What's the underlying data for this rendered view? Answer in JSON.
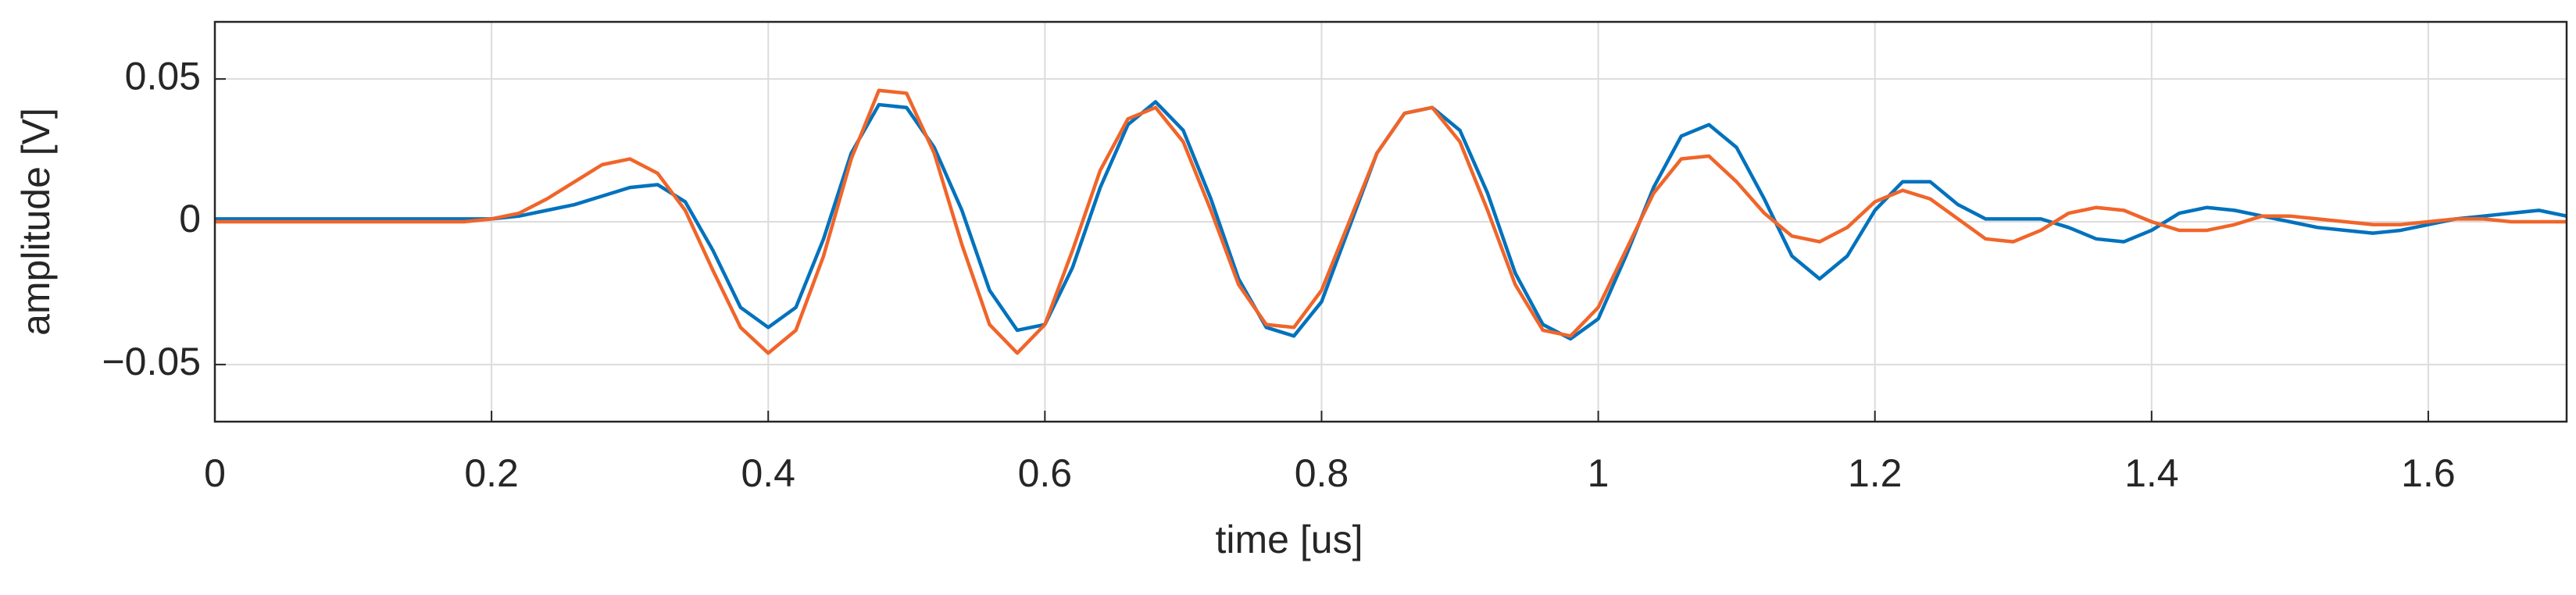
{
  "chart_data": {
    "type": "line",
    "xlabel": "time [us]",
    "ylabel": "amplitude [V]",
    "x": [
      0,
      0.02,
      0.04,
      0.06,
      0.08,
      0.1,
      0.12,
      0.14,
      0.16,
      0.18,
      0.2,
      0.22,
      0.24,
      0.26,
      0.28,
      0.3,
      0.32,
      0.34,
      0.36,
      0.38,
      0.4,
      0.42,
      0.44,
      0.46,
      0.48,
      0.5,
      0.52,
      0.54,
      0.56,
      0.58,
      0.6,
      0.62,
      0.64,
      0.66,
      0.68,
      0.7,
      0.72,
      0.74,
      0.76,
      0.78,
      0.8,
      0.82,
      0.84,
      0.86,
      0.88,
      0.9,
      0.92,
      0.94,
      0.96,
      0.98,
      1,
      1.02,
      1.04,
      1.06,
      1.08,
      1.1,
      1.12,
      1.14,
      1.16,
      1.18,
      1.2,
      1.22,
      1.24,
      1.26,
      1.28,
      1.3,
      1.32,
      1.34,
      1.36,
      1.38,
      1.4,
      1.42,
      1.44,
      1.46,
      1.48,
      1.5,
      1.52,
      1.54,
      1.56,
      1.58,
      1.6,
      1.62,
      1.64,
      1.66,
      1.68,
      1.7
    ],
    "series": [
      {
        "color": "#0072bd",
        "values": [
          0.001,
          0.001,
          0.001,
          0.001,
          0.001,
          0.001,
          0.001,
          0.001,
          0.001,
          0.001,
          0.001,
          0.002,
          0.004,
          0.006,
          0.009,
          0.012,
          0.013,
          0.007,
          -0.01,
          -0.03,
          -0.037,
          -0.03,
          -0.006,
          0.024,
          0.041,
          0.04,
          0.026,
          0.004,
          -0.024,
          -0.038,
          -0.036,
          -0.016,
          0.012,
          0.034,
          0.042,
          0.032,
          0.008,
          -0.02,
          -0.037,
          -0.04,
          -0.028,
          -0.002,
          0.024,
          0.038,
          0.04,
          0.032,
          0.01,
          -0.018,
          -0.036,
          -0.041,
          -0.034,
          -0.012,
          0.012,
          0.03,
          0.034,
          0.026,
          0.008,
          -0.012,
          -0.02,
          -0.012,
          0.004,
          0.014,
          0.014,
          0.006,
          0.001,
          0.001,
          0.001,
          -0.002,
          -0.006,
          -0.007,
          -0.003,
          0.003,
          0.005,
          0.004,
          0.002,
          0,
          -0.002,
          -0.003,
          -0.004,
          -0.003,
          -0.001,
          0.001,
          0.002,
          0.003,
          0.004,
          0.002
        ]
      },
      {
        "color": "#f0652a",
        "values": [
          0,
          0,
          0,
          0,
          0,
          0,
          0,
          0,
          0,
          0,
          0.001,
          0.003,
          0.008,
          0.014,
          0.02,
          0.022,
          0.017,
          0.004,
          -0.017,
          -0.037,
          -0.046,
          -0.038,
          -0.012,
          0.022,
          0.046,
          0.045,
          0.024,
          -0.008,
          -0.036,
          -0.046,
          -0.036,
          -0.01,
          0.018,
          0.036,
          0.04,
          0.028,
          0.004,
          -0.022,
          -0.036,
          -0.037,
          -0.024,
          0,
          0.024,
          0.038,
          0.04,
          0.028,
          0.004,
          -0.022,
          -0.038,
          -0.04,
          -0.03,
          -0.01,
          0.01,
          0.022,
          0.023,
          0.014,
          0.003,
          -0.005,
          -0.007,
          -0.002,
          0.007,
          0.011,
          0.008,
          0.001,
          -0.006,
          -0.007,
          -0.003,
          0.003,
          0.005,
          0.004,
          0,
          -0.003,
          -0.003,
          -0.001,
          0.002,
          0.002,
          0.001,
          0,
          -0.001,
          -0.001,
          0,
          0.001,
          0.001,
          0,
          0,
          0
        ]
      }
    ],
    "xlim": [
      0,
      1.7
    ],
    "xticks": [
      0,
      0.2,
      0.4,
      0.6,
      0.8,
      1,
      1.2,
      1.4,
      1.6
    ],
    "ylim": [
      -0.07,
      0.07
    ],
    "yticks": [
      {
        "value": -0.05,
        "label": "−0.05"
      },
      0,
      0.05
    ],
    "grid": true
  }
}
